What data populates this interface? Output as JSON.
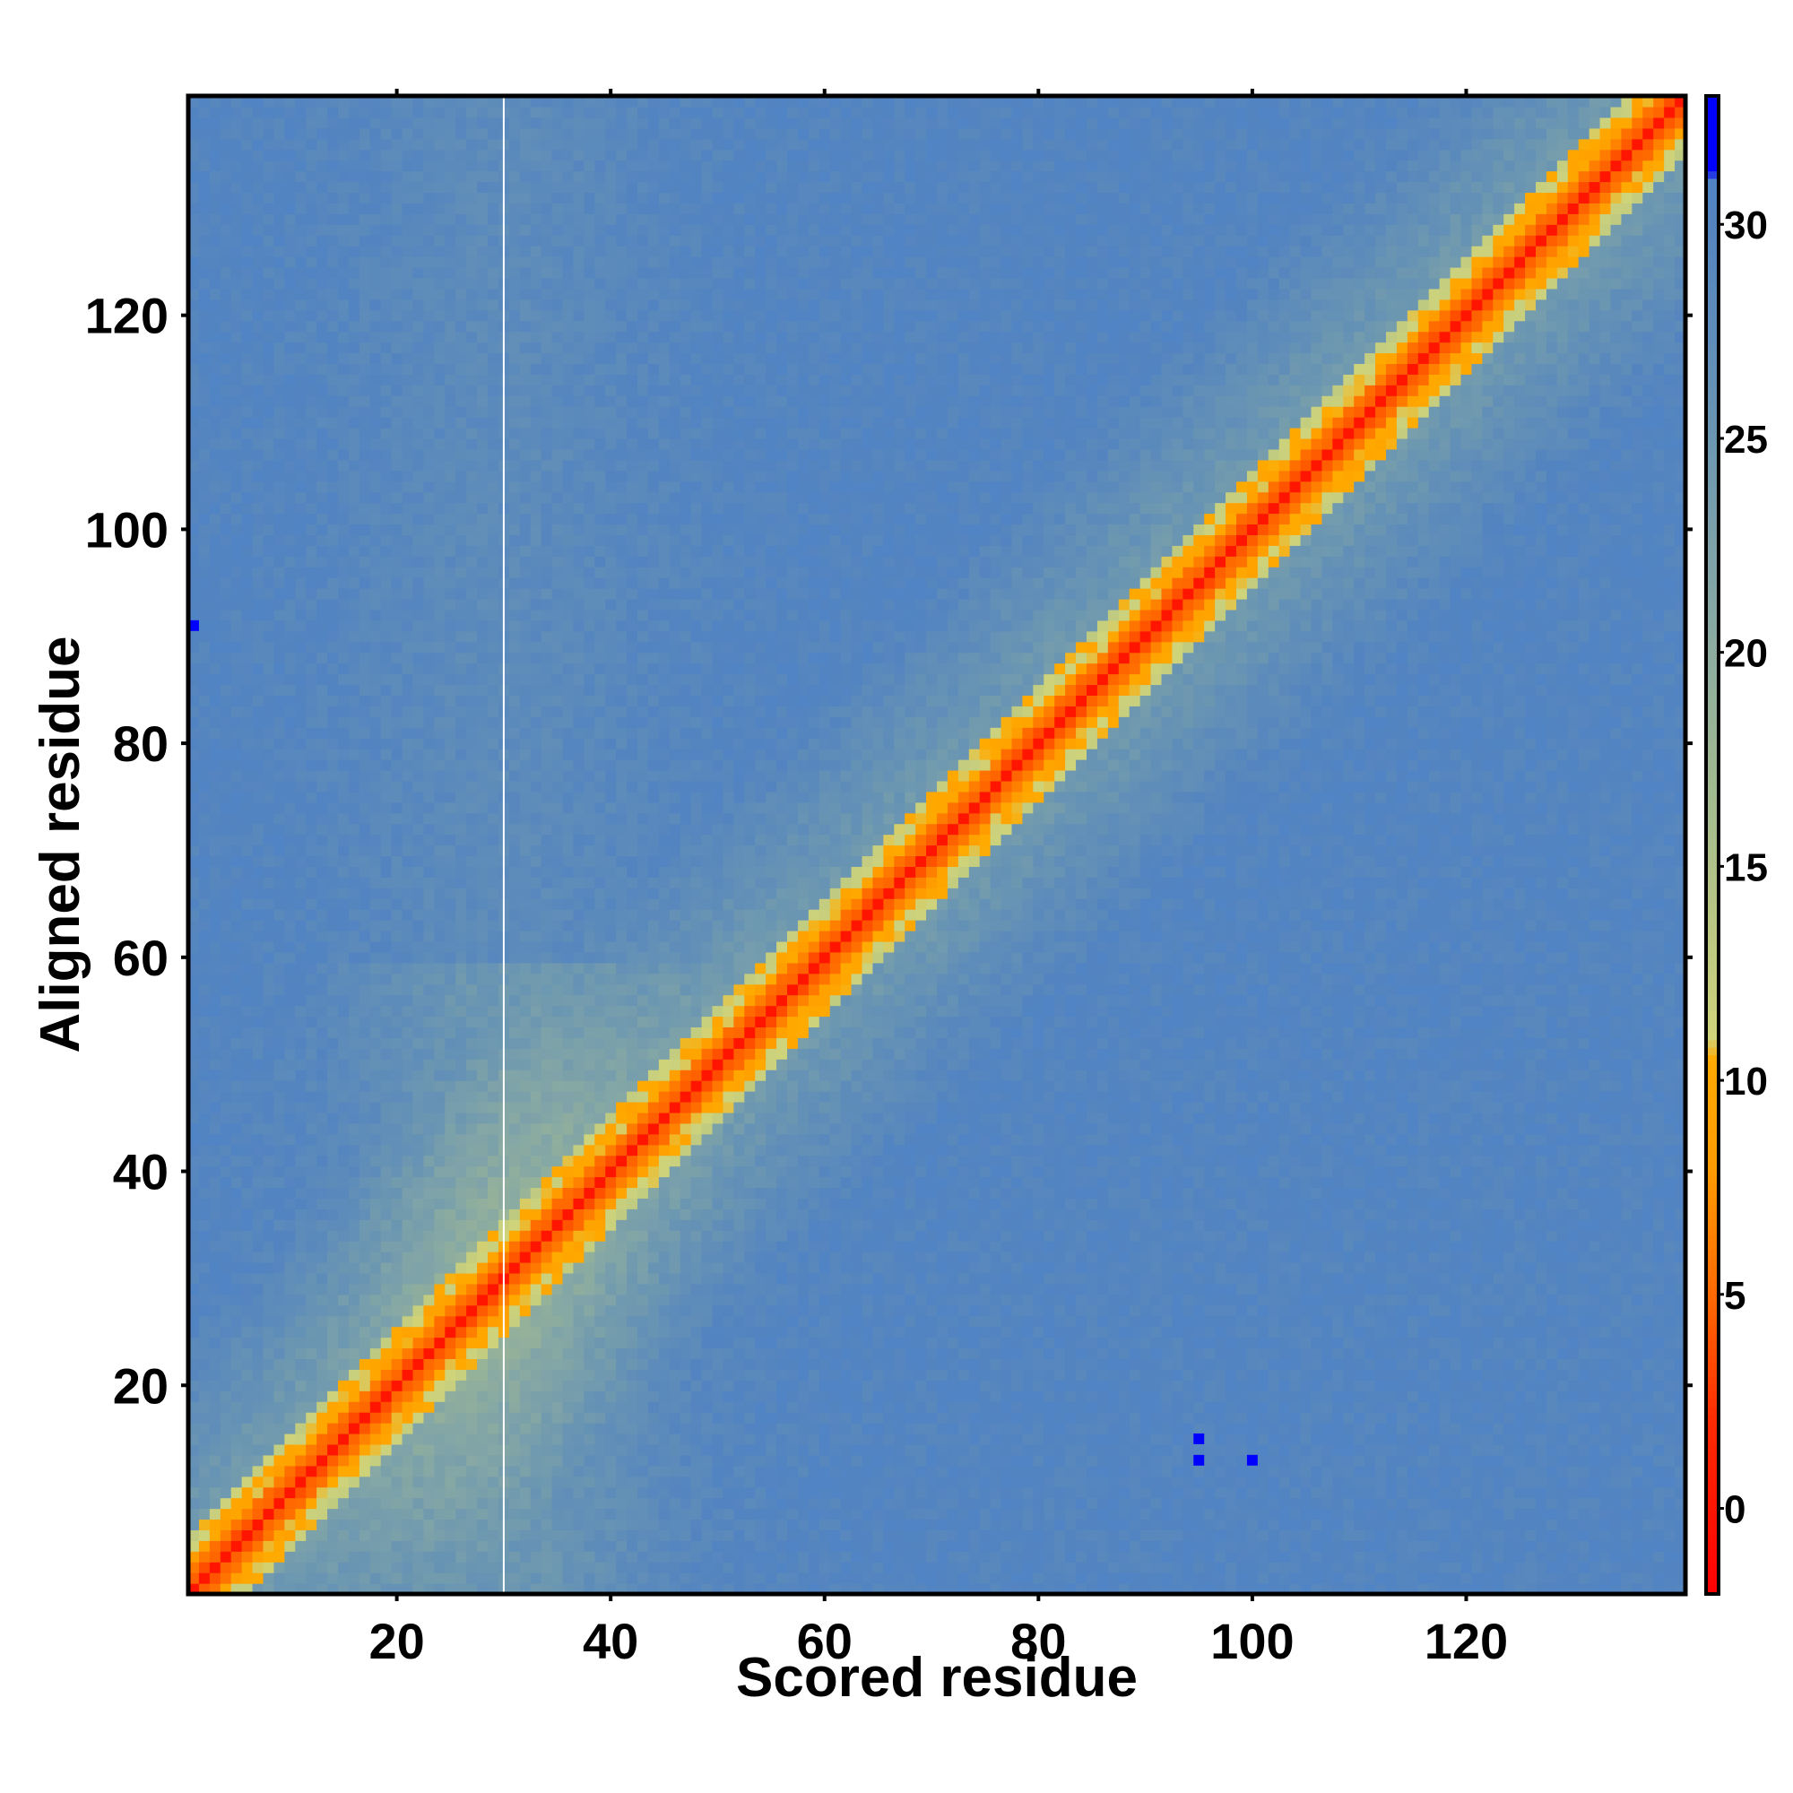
{
  "chart_data": {
    "type": "heatmap",
    "title": "",
    "xlabel": "Scored residue",
    "ylabel": "Aligned residue",
    "xlim": [
      1,
      140
    ],
    "ylim": [
      1,
      140
    ],
    "x_ticks": [
      20,
      40,
      60,
      80,
      100,
      120
    ],
    "y_ticks": [
      20,
      40,
      60,
      80,
      100,
      120
    ],
    "colorbar": {
      "range": [
        -2,
        33
      ],
      "ticks": [
        0,
        5,
        10,
        15,
        20,
        25,
        30
      ],
      "color_stops": [
        {
          "value": -2,
          "color": "#ff0000"
        },
        {
          "value": 2,
          "color": "#ff2a00"
        },
        {
          "value": 5,
          "color": "#ff6a00"
        },
        {
          "value": 8,
          "color": "#ff9c00"
        },
        {
          "value": 10.5,
          "color": "#ffaa00"
        },
        {
          "value": 11,
          "color": "#cfd37a"
        },
        {
          "value": 16,
          "color": "#a7bd8c"
        },
        {
          "value": 21,
          "color": "#86a8a4"
        },
        {
          "value": 26,
          "color": "#6592b5"
        },
        {
          "value": 30,
          "color": "#5484c0"
        },
        {
          "value": 31,
          "color": "#5184c4"
        },
        {
          "value": 31.3,
          "color": "#0000ff"
        },
        {
          "value": 33,
          "color": "#0000ff"
        }
      ]
    },
    "description_of_values": {
      "diagonal_value": 0,
      "near_diagonal_band_values": [
        2,
        10
      ],
      "background_value_range": [
        24,
        30
      ],
      "gap_column_x": 30,
      "outlier_cells": [
        {
          "x": 1,
          "y": 91,
          "value": 33
        },
        {
          "x": 95,
          "y": 15,
          "value": 33
        },
        {
          "x": 95,
          "y": 13,
          "value": 33
        },
        {
          "x": 100,
          "y": 13,
          "value": 33
        }
      ]
    },
    "grid": false,
    "legend": "colorbar-right"
  },
  "colors": {
    "axis": "#000000",
    "background": "#ffffff",
    "gap_line": "#ffffff"
  }
}
